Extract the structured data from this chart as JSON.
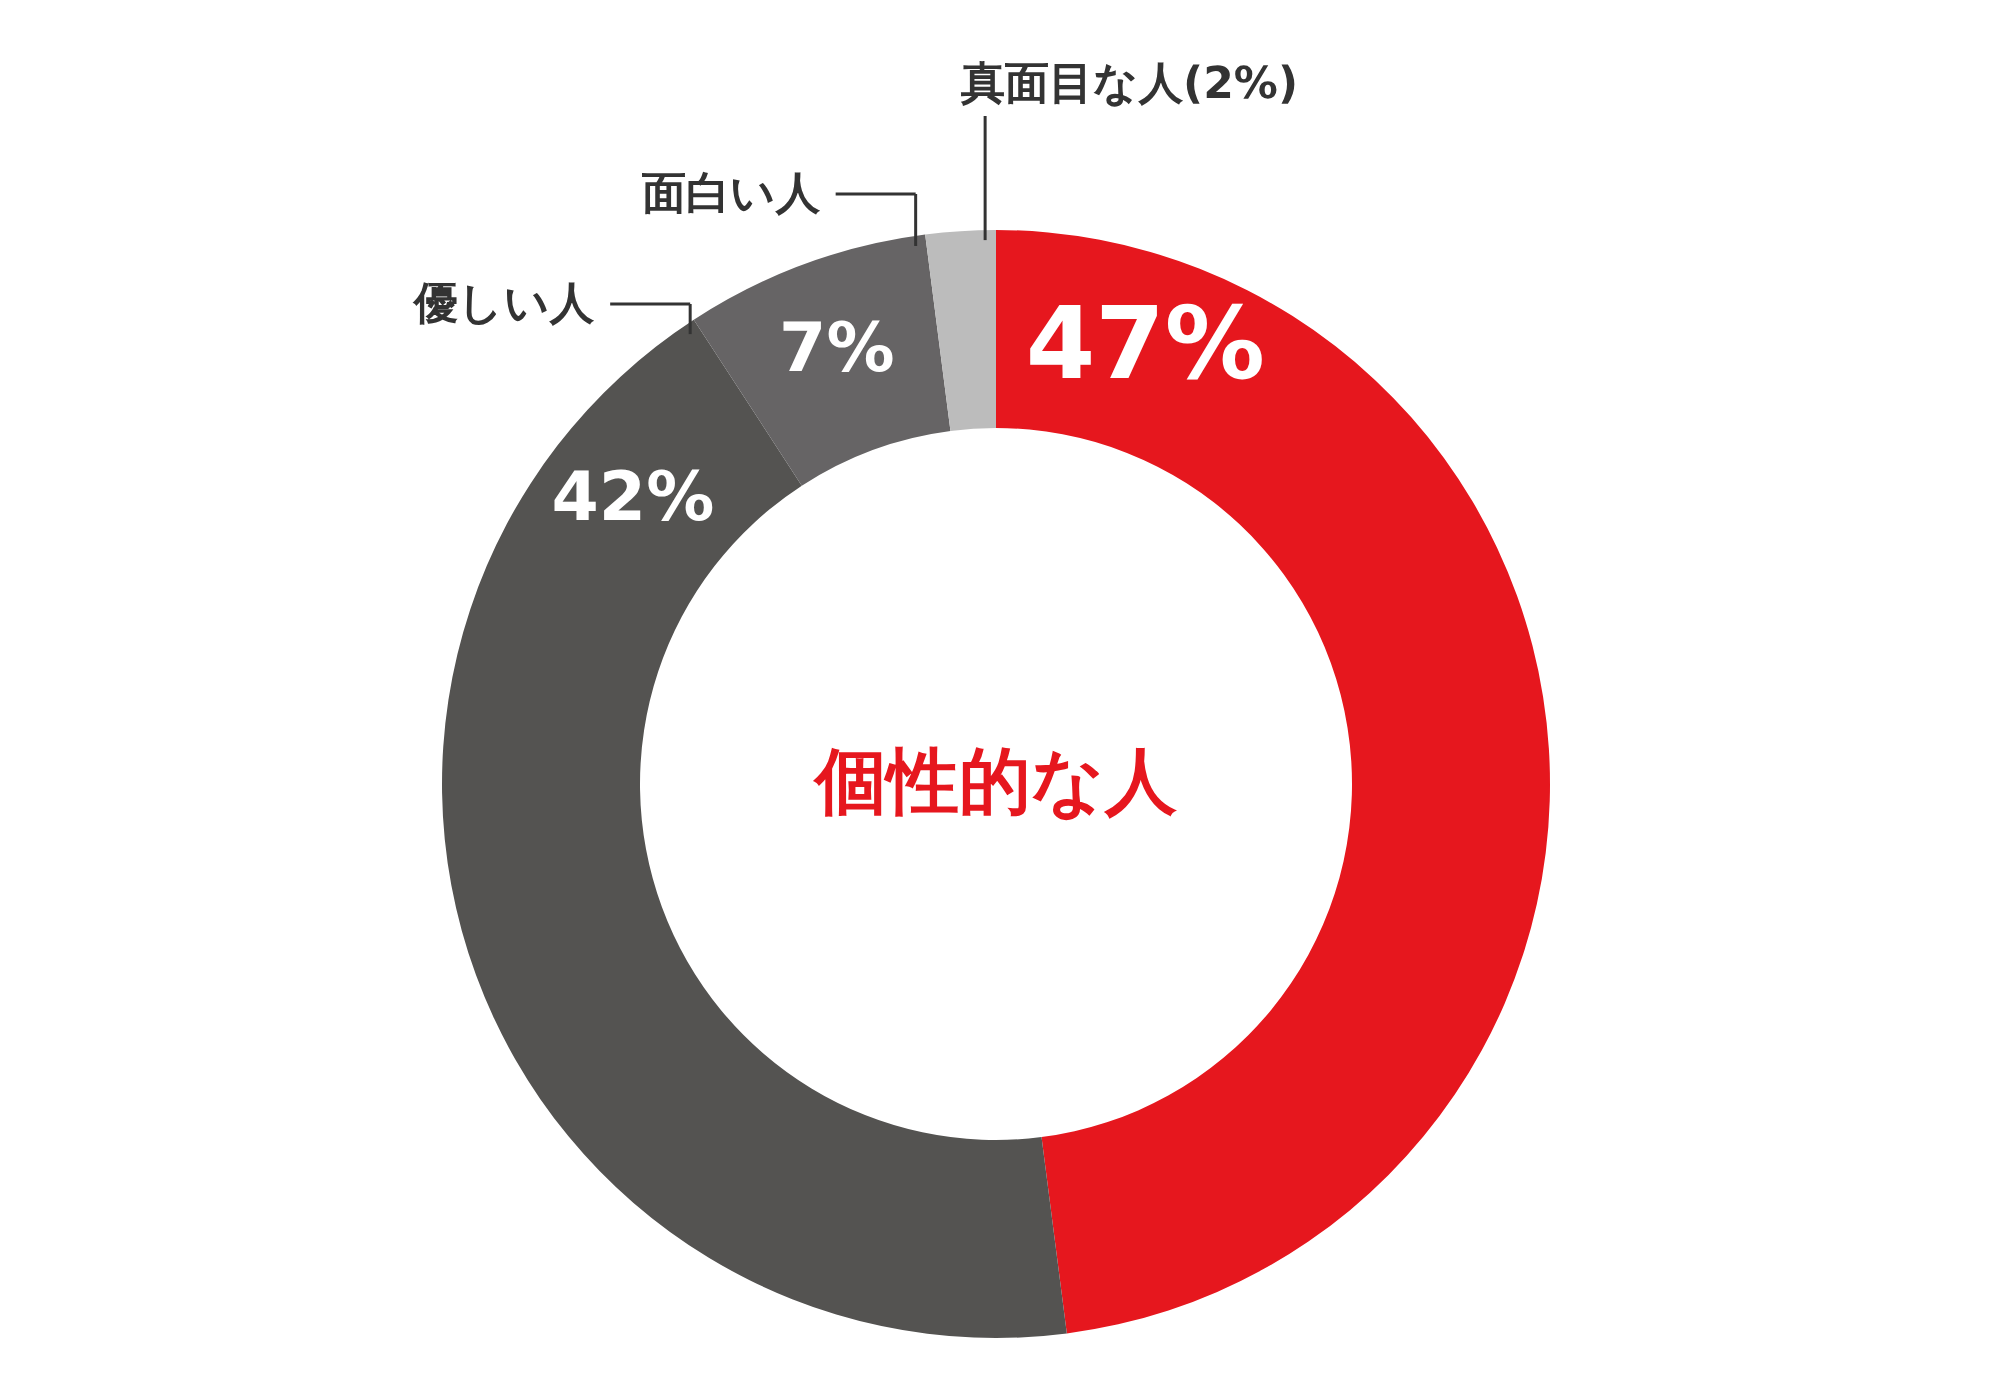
{
  "chart_data": {
    "type": "donut",
    "categories": [
      "個性的な人",
      "優しい人",
      "面白い人",
      "真面目な人"
    ],
    "values": [
      47,
      42,
      7,
      2
    ],
    "colors": [
      "#e6171e",
      "#545351",
      "#666465",
      "#bcbcbc"
    ],
    "value_labels": [
      "47%",
      "42%",
      "7%",
      "(2%)"
    ]
  }
}
